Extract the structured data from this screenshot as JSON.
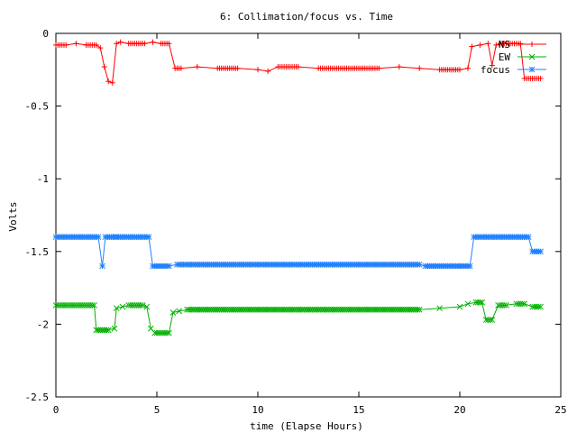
{
  "chart_data": {
    "type": "line",
    "title": "6: Collimation/focus vs. Time",
    "xlabel": "time (Elapse Hours)",
    "ylabel": "Volts",
    "xlim": [
      0,
      25
    ],
    "ylim": [
      -2.5,
      0
    ],
    "xticks": [
      0,
      5,
      10,
      15,
      20,
      25
    ],
    "yticks": [
      0,
      -0.5,
      -1,
      -1.5,
      -2,
      -2.5
    ],
    "xtick_labels": [
      "0",
      "5",
      "10",
      "15",
      "20",
      "25"
    ],
    "ytick_labels": [
      "0",
      "-0.5",
      "-1",
      "-1.5",
      "-2",
      "-2.5"
    ],
    "legend_position": "top-right",
    "grid": false,
    "series": [
      {
        "name": "NS",
        "color": "#ff0000",
        "marker": "plus",
        "x": [
          0,
          0.5,
          1.0,
          1.5,
          2.0,
          2.2,
          2.4,
          2.6,
          2.8,
          3.0,
          3.2,
          3.6,
          4.0,
          4.4,
          4.8,
          5.2,
          5.6,
          5.9,
          6.2,
          7.0,
          8.0,
          9.0,
          10.0,
          10.5,
          11.0,
          12.0,
          13.0,
          14.0,
          15.0,
          16.0,
          17.0,
          18.0,
          19.0,
          20.0,
          20.4,
          20.6,
          21.0,
          21.4,
          21.6,
          21.8,
          22.0,
          22.4,
          22.8,
          23.0,
          23.2,
          23.6,
          24.0
        ],
        "y": [
          -0.08,
          -0.08,
          -0.07,
          -0.08,
          -0.08,
          -0.1,
          -0.23,
          -0.33,
          -0.34,
          -0.07,
          -0.06,
          -0.07,
          -0.07,
          -0.07,
          -0.06,
          -0.07,
          -0.07,
          -0.24,
          -0.24,
          -0.23,
          -0.24,
          -0.24,
          -0.25,
          -0.26,
          -0.23,
          -0.23,
          -0.24,
          -0.24,
          -0.24,
          -0.24,
          -0.23,
          -0.24,
          -0.25,
          -0.25,
          -0.24,
          -0.09,
          -0.08,
          -0.07,
          -0.22,
          -0.08,
          -0.07,
          -0.07,
          -0.07,
          -0.07,
          -0.31,
          -0.31,
          -0.31
        ]
      },
      {
        "name": "EW",
        "color": "#00b000",
        "marker": "cross",
        "x": [
          0,
          0.5,
          1.0,
          1.5,
          1.9,
          2.0,
          2.3,
          2.6,
          2.9,
          3.0,
          3.3,
          3.6,
          4.0,
          4.3,
          4.5,
          4.7,
          4.9,
          5.2,
          5.6,
          5.8,
          6.1,
          6.5,
          7.0,
          8.0,
          9.0,
          10.0,
          11.0,
          12.0,
          13.0,
          14.0,
          15.0,
          16.0,
          17.0,
          18.0,
          19.0,
          20.0,
          20.4,
          20.8,
          21.1,
          21.3,
          21.6,
          21.9,
          22.3,
          22.8,
          23.2,
          23.6,
          24.0
        ],
        "y": [
          -1.87,
          -1.87,
          -1.87,
          -1.87,
          -1.87,
          -2.04,
          -2.04,
          -2.04,
          -2.03,
          -1.89,
          -1.88,
          -1.87,
          -1.87,
          -1.87,
          -1.88,
          -2.03,
          -2.06,
          -2.06,
          -2.06,
          -1.92,
          -1.91,
          -1.9,
          -1.9,
          -1.9,
          -1.9,
          -1.9,
          -1.9,
          -1.9,
          -1.9,
          -1.9,
          -1.9,
          -1.9,
          -1.9,
          -1.9,
          -1.89,
          -1.88,
          -1.86,
          -1.85,
          -1.85,
          -1.97,
          -1.97,
          -1.87,
          -1.87,
          -1.86,
          -1.86,
          -1.88,
          -1.88
        ]
      },
      {
        "name": "focus",
        "color": "#2080ff",
        "marker": "star",
        "x": [
          0,
          0.5,
          1.0,
          1.5,
          2.0,
          2.1,
          2.3,
          2.45,
          3.0,
          3.5,
          4.0,
          4.5,
          4.6,
          4.8,
          5.2,
          5.6,
          6.0,
          7.0,
          8.0,
          9.0,
          10.0,
          11.0,
          12.0,
          13.0,
          14.0,
          15.0,
          16.0,
          17.0,
          18.0,
          18.3,
          19.0,
          20.0,
          20.5,
          20.7,
          21.0,
          21.5,
          22.0,
          22.5,
          23.0,
          23.4,
          23.6,
          23.8,
          24.0
        ],
        "y": [
          -1.4,
          -1.4,
          -1.4,
          -1.4,
          -1.4,
          -1.4,
          -1.6,
          -1.4,
          -1.4,
          -1.4,
          -1.4,
          -1.4,
          -1.4,
          -1.6,
          -1.6,
          -1.6,
          -1.59,
          -1.59,
          -1.59,
          -1.59,
          -1.59,
          -1.59,
          -1.59,
          -1.59,
          -1.59,
          -1.59,
          -1.59,
          -1.59,
          -1.59,
          -1.6,
          -1.6,
          -1.6,
          -1.6,
          -1.4,
          -1.4,
          -1.4,
          -1.4,
          -1.4,
          -1.4,
          -1.4,
          -1.5,
          -1.5,
          -1.5
        ]
      }
    ]
  }
}
